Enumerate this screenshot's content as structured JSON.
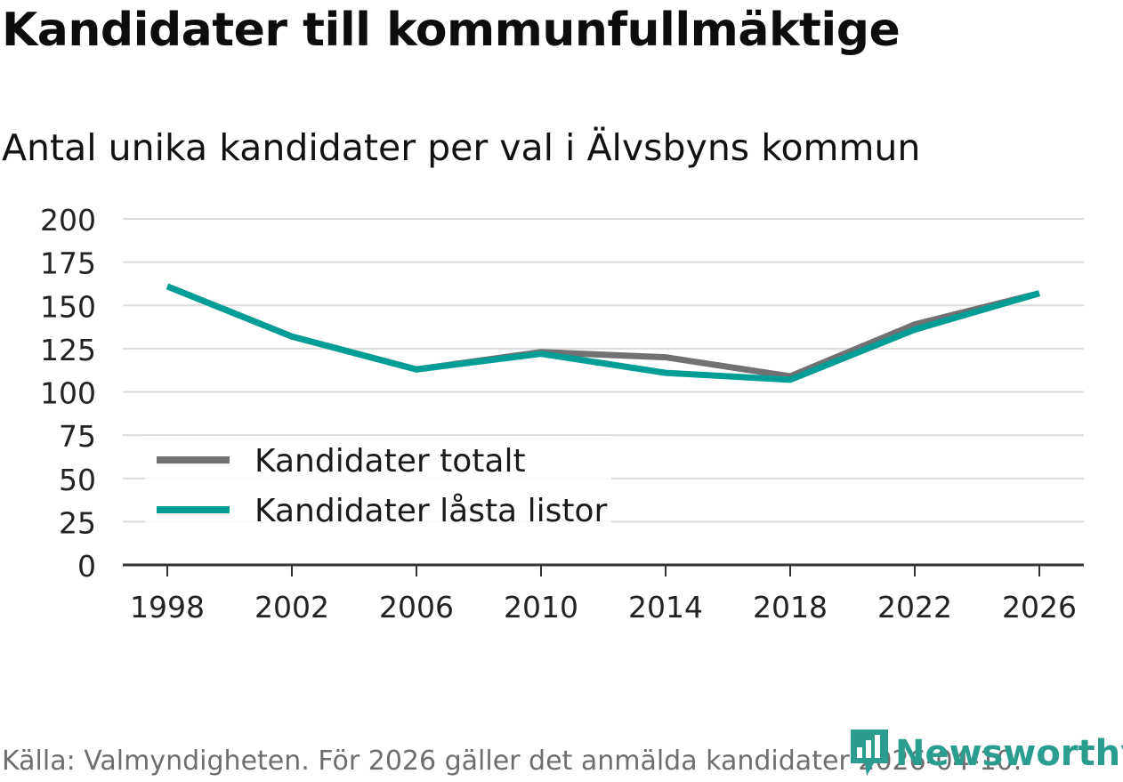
{
  "header": {
    "title": "Kandidater till kommunfullmäktige",
    "subtitle": "Antal unika kandidater per val i Älvsbyns kommun"
  },
  "footer": {
    "source": "Källa: Valmyndigheten. För 2026 gäller det anmälda kandidater 2026-04-10.",
    "brand": "Newsworthy"
  },
  "colors": {
    "totalt": "#717073",
    "lasta": "#009e96",
    "grid": "#dcdcdc",
    "axis": "#333333",
    "brand": "#2a9d8f"
  },
  "chart_data": {
    "type": "line",
    "title": "Kandidater till kommunfullmäktige",
    "subtitle": "Antal unika kandidater per val i Älvsbyns kommun",
    "xlabel": "",
    "ylabel": "",
    "x": [
      "1998",
      "2002",
      "2006",
      "2010",
      "2014",
      "2018",
      "2022",
      "2026"
    ],
    "yticks": [
      "0",
      "25",
      "50",
      "75",
      "100",
      "125",
      "150",
      "175",
      "200"
    ],
    "ylim": [
      0,
      200
    ],
    "grid": true,
    "legend_position": "bottom-left",
    "series": [
      {
        "name": "Kandidater totalt",
        "values": [
          161,
          132,
          113,
          123,
          120,
          109,
          139,
          157
        ]
      },
      {
        "name": "Kandidater låsta listor",
        "values": [
          161,
          132,
          113,
          122,
          111,
          107,
          136,
          157
        ]
      }
    ]
  }
}
